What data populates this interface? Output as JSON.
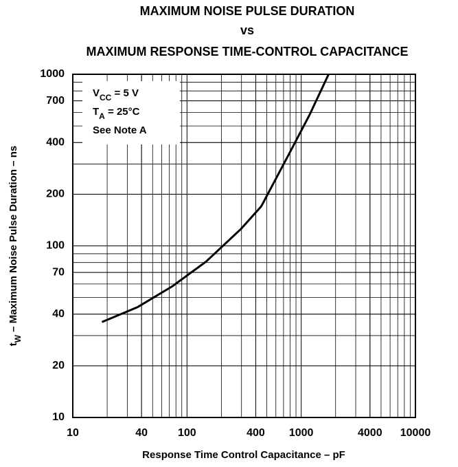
{
  "chart_data": {
    "type": "line",
    "title": [
      "MAXIMUM NOISE PULSE DURATION",
      "vs",
      "MAXIMUM RESPONSE TIME-CONTROL CAPACITANCE"
    ],
    "x_label": "Response Time Control Capacitance – pF",
    "y_label": [
      {
        "text": "t"
      },
      {
        "text": "W",
        "sub": true
      },
      {
        "text": " – Maximum Noise Pulse Duration – ns"
      }
    ],
    "annotations": [
      [
        {
          "text": "V"
        },
        {
          "text": "CC",
          "sub": true
        },
        {
          "text": " = 5 V"
        }
      ],
      [
        {
          "text": "T"
        },
        {
          "text": "A",
          "sub": true
        },
        {
          "text": " = 25°C"
        }
      ],
      [
        {
          "text": "See Note A"
        }
      ]
    ],
    "xscale": "log",
    "yscale": "log",
    "grid": true,
    "minor_grid": true,
    "xlim": [
      10,
      10000
    ],
    "ylim": [
      10,
      1000
    ],
    "xticks": [
      10,
      40,
      100,
      400,
      1000,
      4000,
      10000
    ],
    "yticks": [
      10,
      20,
      40,
      70,
      100,
      200,
      400,
      700,
      1000
    ],
    "series": [
      {
        "color": "#000000",
        "x": [
          18,
          37,
          74,
          147,
          295,
          447,
          776,
          1175,
          1738
        ],
        "values": [
          36,
          44,
          58,
          81,
          125,
          170,
          340,
          575,
          1000
        ]
      }
    ]
  }
}
